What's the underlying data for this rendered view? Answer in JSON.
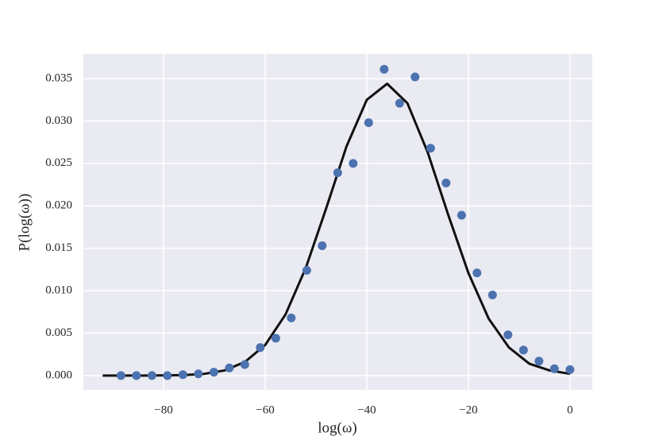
{
  "chart_data": {
    "type": "scatter",
    "x_label": "log(ω)",
    "y_label": "P(log(ω))",
    "xlim": [
      -95.8,
      4.4
    ],
    "ylim": [
      -0.0017,
      0.0379
    ],
    "xticks": [
      {
        "value": -80,
        "label": "−80"
      },
      {
        "value": -60,
        "label": "−60"
      },
      {
        "value": -40,
        "label": "−40"
      },
      {
        "value": -20,
        "label": "−20"
      },
      0
    ],
    "yticks": [
      {
        "value": 0,
        "label": "0.000"
      },
      {
        "value": 0.005,
        "label": "0.005"
      },
      {
        "value": 0.01,
        "label": "0.010"
      },
      {
        "value": 0.015,
        "label": "0.015"
      },
      {
        "value": 0.02,
        "label": "0.020"
      },
      {
        "value": 0.025,
        "label": "0.025"
      },
      {
        "value": 0.03,
        "label": "0.030"
      },
      {
        "value": 0.035,
        "label": "0.035"
      }
    ],
    "grid": true,
    "background": "#eaeaf2",
    "scatter": {
      "color": "#4c72b0",
      "x": [
        -88.4,
        -85.35,
        -82.3,
        -79.26,
        -76.21,
        -73.16,
        -70.11,
        -67.06,
        -64.02,
        -60.97,
        -57.92,
        -54.87,
        -51.82,
        -48.78,
        -45.73,
        -42.68,
        -39.63,
        -36.58,
        -33.54,
        -30.49,
        -27.44,
        -24.39,
        -21.34,
        -18.3,
        -15.25,
        -12.2,
        -9.15,
        -6.1,
        -3.06,
        0
      ],
      "values": [
        0,
        0,
        0,
        0,
        0.0001,
        0.0002,
        0.0004,
        0.0009,
        0.0013,
        0.0033,
        0.0044,
        0.0068,
        0.0124,
        0.0153,
        0.0239,
        0.025,
        0.0298,
        0.0361,
        0.0321,
        0.0352,
        0.0268,
        0.0227,
        0.0189,
        0.0121,
        0.0095,
        0.0048,
        0.003,
        0.0017,
        0.0008,
        0.0007
      ]
    },
    "line": {
      "color": "#111111",
      "x": [
        -92,
        -88,
        -84,
        -80,
        -76,
        -72,
        -68,
        -64,
        -60,
        -56,
        -52,
        -48,
        -44,
        -40,
        -36,
        -32,
        -28,
        -24,
        -20,
        -16,
        -12,
        -8,
        -4,
        0
      ],
      "values": [
        0,
        0,
        0,
        2e-05,
        6e-05,
        0.0002,
        0.0006,
        0.0016,
        0.0036,
        0.0072,
        0.0127,
        0.0197,
        0.027,
        0.0325,
        0.0344,
        0.0321,
        0.0263,
        0.019,
        0.0121,
        0.0067,
        0.0033,
        0.0014,
        0.0006,
        0.0002
      ]
    }
  }
}
